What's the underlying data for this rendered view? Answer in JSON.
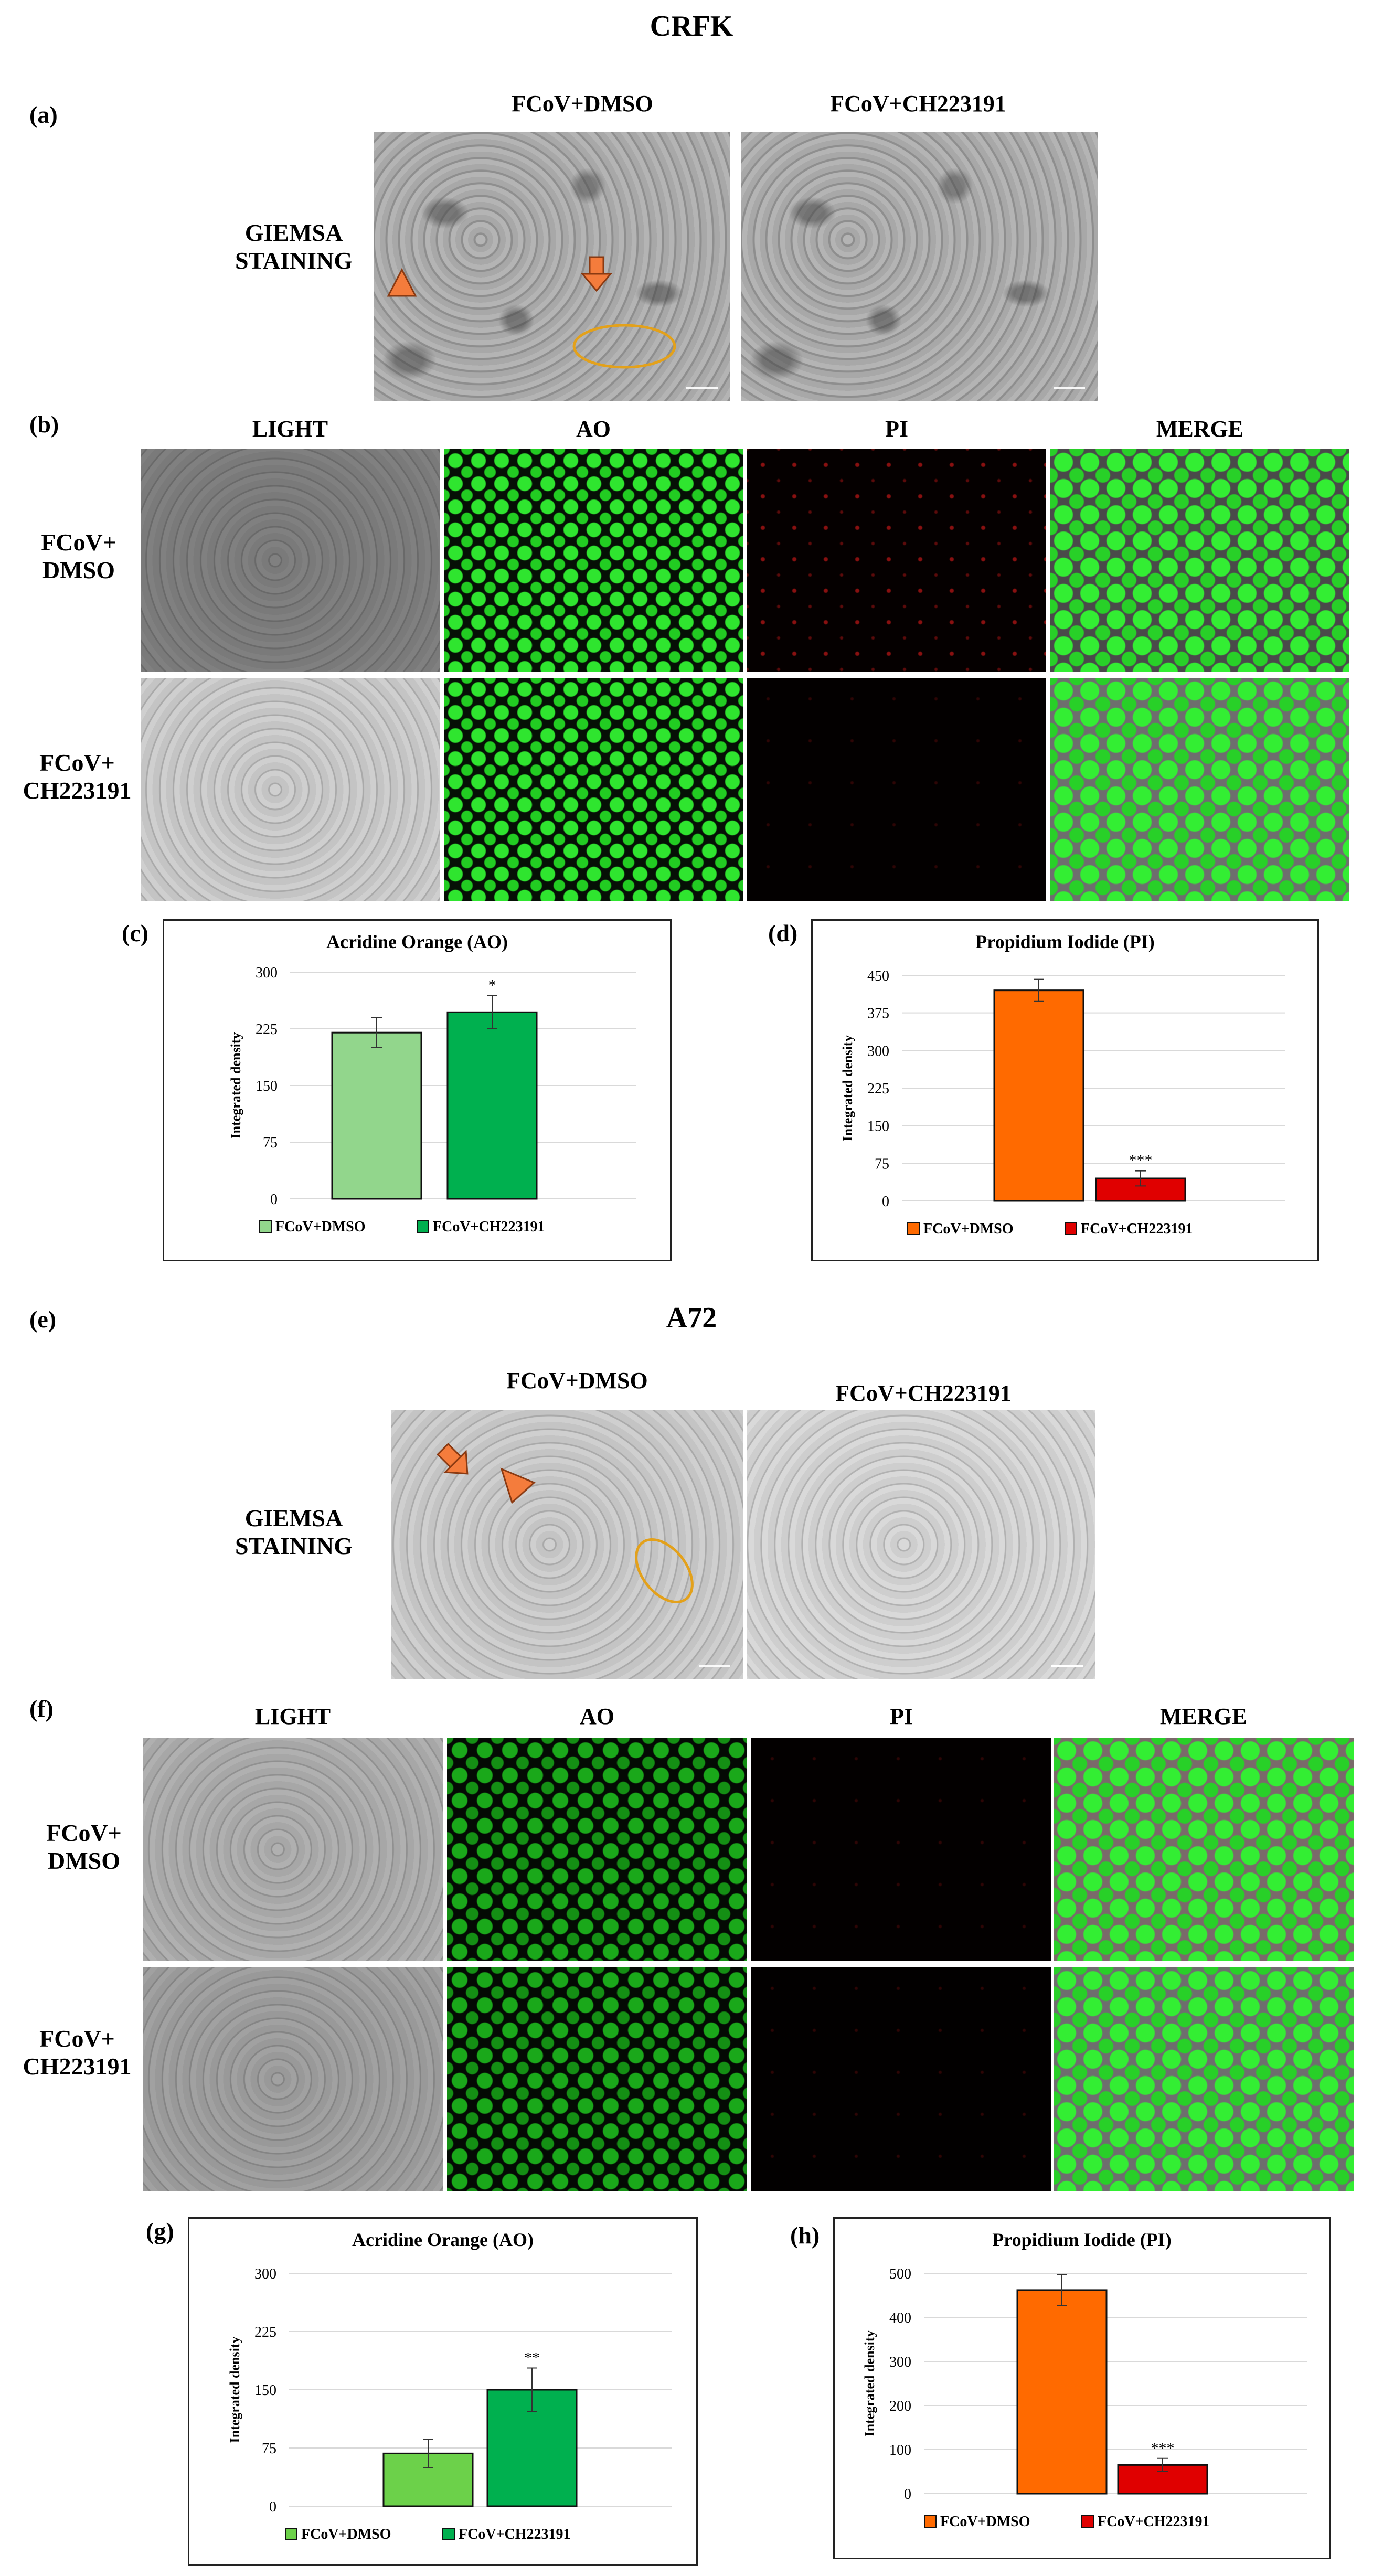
{
  "section_crfk": {
    "title": "CRFK",
    "label_a": "(a)",
    "label_b": "(b)",
    "label_c": "(c)",
    "label_d": "(d)",
    "giemsa_cols": [
      "FCoV+DMSO",
      "FCoV+CH223191"
    ],
    "giemsa_row": "GIEMSA\nSTAINING",
    "fl_cols": [
      "LIGHT",
      "AO",
      "PI",
      "MERGE"
    ],
    "fl_rows": [
      "FCoV+\nDMSO",
      "FCoV+\nCH223191"
    ]
  },
  "section_a72": {
    "title": "A72",
    "label_e": "(e)",
    "label_f": "(f)",
    "label_g": "(g)",
    "label_h": "(h)",
    "giemsa_cols": [
      "FCoV+DMSO",
      "FCoV+CH223191"
    ],
    "giemsa_row": "GIEMSA\nSTAINING",
    "fl_cols": [
      "LIGHT",
      "AO",
      "PI",
      "MERGE"
    ],
    "fl_rows": [
      "FCoV+\nDMSO",
      "FCoV+\nCH223191"
    ]
  },
  "colors": {
    "arrow": "#f47c3c",
    "circle": "#e3a11b",
    "ao_dmso": "#92d68c",
    "ao_ch": "#00b04f",
    "ao_dmso_g": "#6cd14a",
    "ao_ch_g": "#00b04f",
    "pi_dmso": "#ff6a00",
    "pi_ch": "#e00000"
  },
  "chart_data": [
    {
      "id": "c",
      "type": "bar",
      "title": "Acridine Orange (AO)",
      "ylabel": "Integrated density",
      "ylim": [
        0,
        300
      ],
      "yticks": [
        "0",
        "75",
        "150",
        "225",
        "300"
      ],
      "categories": [
        "FCoV+DMSO",
        "FCoV+CH223191"
      ],
      "values": [
        220,
        247
      ],
      "errors": [
        20,
        22
      ],
      "significance": [
        "",
        "*"
      ],
      "legend": [
        "FCoV+DMSO",
        "FCoV+CH223191"
      ],
      "legend_position": "bottom",
      "grid": true
    },
    {
      "id": "d",
      "type": "bar",
      "title": "Propidium Iodide (PI)",
      "ylabel": "Integrated density",
      "ylim": [
        0,
        450
      ],
      "yticks": [
        "0",
        "75",
        "150",
        "225",
        "300",
        "375",
        "450"
      ],
      "categories": [
        "FCoV+DMSO",
        "FCoV+CH223191"
      ],
      "values": [
        420,
        45
      ],
      "errors": [
        22,
        15
      ],
      "significance": [
        "",
        "***"
      ],
      "legend": [
        "FCoV+DMSO",
        "FCoV+CH223191"
      ],
      "legend_position": "bottom",
      "grid": true
    },
    {
      "id": "g",
      "type": "bar",
      "title": "Acridine Orange (AO)",
      "ylabel": "Integrated density",
      "ylim": [
        0,
        300
      ],
      "yticks": [
        "0",
        "75",
        "150",
        "225",
        "300"
      ],
      "categories": [
        "FCoV+DMSO",
        "FCoV+CH223191"
      ],
      "values": [
        68,
        150
      ],
      "errors": [
        18,
        28
      ],
      "significance": [
        "",
        "**"
      ],
      "legend": [
        "FCoV+DMSO",
        "FCoV+CH223191"
      ],
      "legend_position": "bottom",
      "grid": true
    },
    {
      "id": "h",
      "type": "bar",
      "title": "Propidium Iodide (PI)",
      "ylabel": "Integrated density",
      "ylim": [
        0,
        500
      ],
      "yticks": [
        "0",
        "100",
        "200",
        "300",
        "400",
        "500"
      ],
      "categories": [
        "FCoV+DMSO",
        "FCoV+CH223191"
      ],
      "values": [
        462,
        65
      ],
      "errors": [
        35,
        15
      ],
      "significance": [
        "",
        "***"
      ],
      "legend": [
        "FCoV+DMSO",
        "FCoV+CH223191"
      ],
      "legend_position": "bottom",
      "grid": true
    }
  ]
}
